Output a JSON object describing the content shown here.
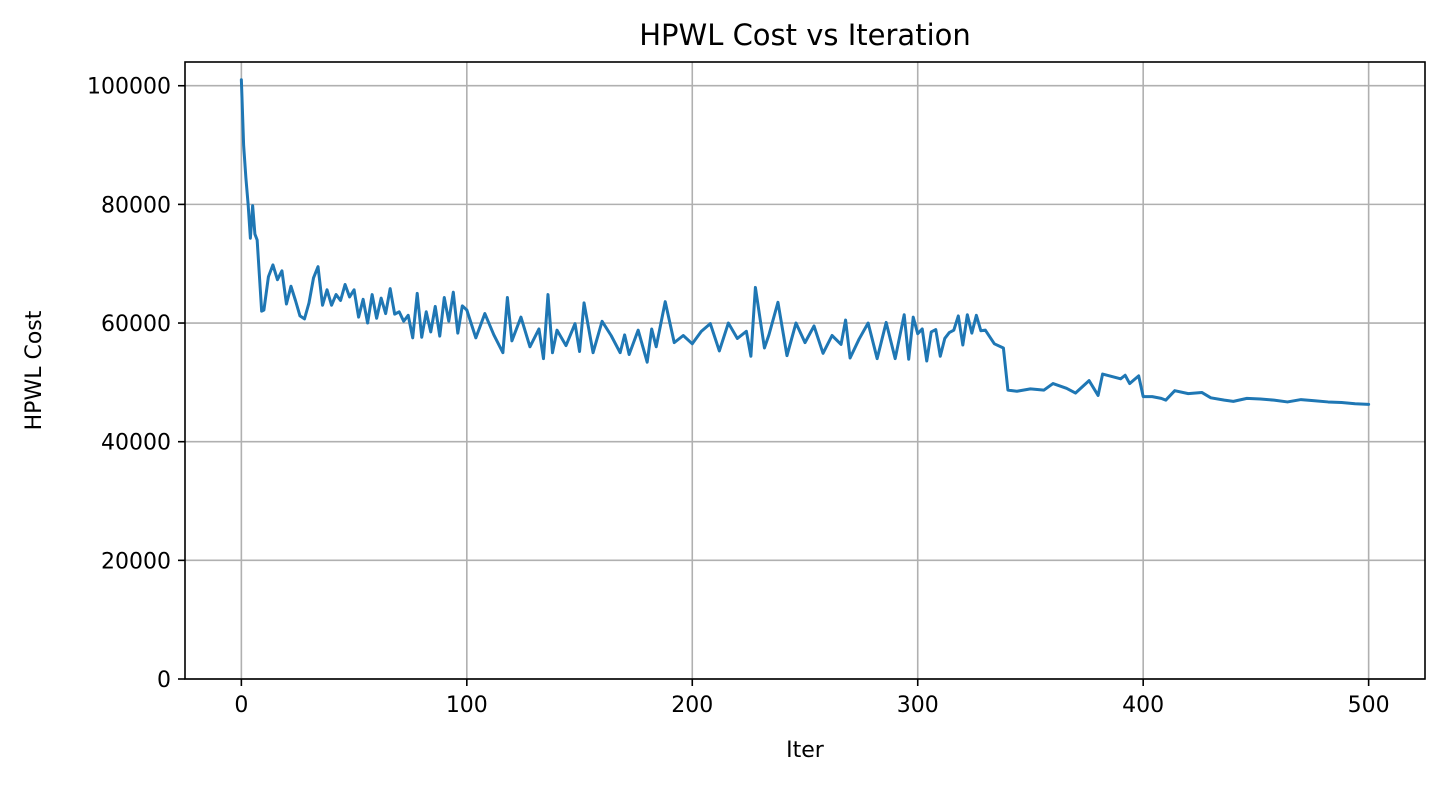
{
  "chart_data": {
    "type": "line",
    "title": "HPWL Cost vs Iteration",
    "xlabel": "Iter",
    "ylabel": "HPWL Cost",
    "xlim": [
      -25,
      525
    ],
    "ylim": [
      0,
      104000
    ],
    "xticks": [
      0,
      100,
      200,
      300,
      400,
      500
    ],
    "yticks": [
      0,
      20000,
      40000,
      60000,
      80000,
      100000
    ],
    "grid": true,
    "line_color": "#1f77b4",
    "series": [
      {
        "x": [
          0,
          1,
          2,
          3,
          4,
          5,
          6,
          7,
          8,
          9,
          10,
          12,
          14,
          16,
          18,
          20,
          22,
          24,
          26,
          28,
          30,
          32,
          34,
          36,
          38,
          40,
          42,
          44,
          46,
          48,
          50,
          52,
          54,
          56,
          58,
          60,
          62,
          64,
          66,
          68,
          70,
          72,
          74,
          76,
          78,
          80,
          82,
          84,
          86,
          88,
          90,
          92,
          94,
          96,
          98,
          100,
          104,
          108,
          112,
          116,
          118,
          120,
          124,
          128,
          132,
          134,
          136,
          138,
          140,
          144,
          148,
          150,
          152,
          156,
          160,
          164,
          168,
          170,
          172,
          176,
          180,
          182,
          184,
          188,
          192,
          196,
          200,
          204,
          208,
          212,
          216,
          220,
          224,
          226,
          228,
          232,
          234,
          238,
          242,
          246,
          250,
          254,
          258,
          262,
          266,
          268,
          270,
          274,
          278,
          282,
          286,
          290,
          294,
          296,
          298,
          300,
          302,
          304,
          306,
          308,
          310,
          312,
          314,
          316,
          318,
          320,
          322,
          324,
          326,
          328,
          330,
          334,
          338,
          340,
          344,
          350,
          356,
          360,
          366,
          370,
          376,
          380,
          382,
          386,
          390,
          392,
          394,
          398,
          400,
          404,
          408,
          410,
          414,
          420,
          426,
          430,
          436,
          440,
          446,
          452,
          458,
          464,
          470,
          476,
          482,
          488,
          494,
          500
        ],
        "y": [
          101000,
          90000,
          84500,
          80000,
          74300,
          79800,
          75000,
          74000,
          68000,
          62000,
          62200,
          67800,
          69800,
          67300,
          68800,
          63200,
          66200,
          63800,
          61200,
          60700,
          63400,
          67600,
          69500,
          63000,
          65600,
          63000,
          64800,
          63800,
          66500,
          64400,
          65600,
          61000,
          64000,
          60000,
          64800,
          60800,
          64200,
          61600,
          65800,
          61500,
          61900,
          60300,
          61300,
          57500,
          65000,
          57600,
          61900,
          58500,
          62800,
          57800,
          64300,
          60300,
          65200,
          58300,
          62900,
          62200,
          57500,
          61600,
          58000,
          55000,
          64300,
          57000,
          61000,
          56000,
          59000,
          54000,
          64800,
          55000,
          58800,
          56200,
          59900,
          55200,
          63400,
          55000,
          60300,
          57900,
          55000,
          58000,
          54700,
          58800,
          53400,
          59000,
          56000,
          63600,
          56700,
          57900,
          56500,
          58600,
          59900,
          55300,
          60000,
          57400,
          58600,
          54400,
          66000,
          55800,
          58000,
          63500,
          54500,
          60000,
          56700,
          59500,
          54900,
          57900,
          56400,
          60500,
          54100,
          57300,
          60000,
          54000,
          60100,
          54000,
          61400,
          53900,
          61000,
          58200,
          59000,
          53600,
          58500,
          58900,
          54400,
          57400,
          58400,
          58800,
          61200,
          56300,
          61400,
          58300,
          61300,
          58700,
          58800,
          56500,
          55800,
          48700,
          48500,
          48900,
          48700,
          49800,
          49000,
          48200,
          50300,
          47800,
          51400,
          51000,
          50600,
          51200,
          49800,
          51100,
          47600,
          47600,
          47300,
          47000,
          48600,
          48100,
          48300,
          47400,
          47000,
          46800,
          47300,
          47200,
          47000,
          46700,
          47100,
          46900,
          46700,
          46600,
          46400,
          46300
        ]
      }
    ]
  }
}
